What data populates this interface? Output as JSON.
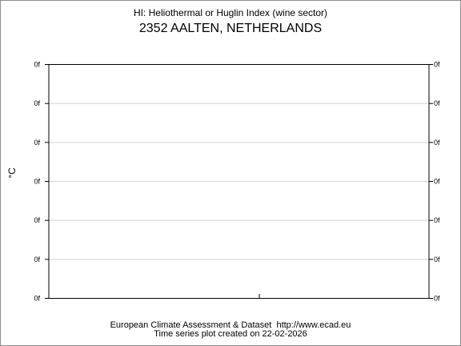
{
  "chart_data": {
    "type": "line",
    "title": "HI: Heliothermal or Huglin Index (wine sector)",
    "subtitle": "2352 AALTEN, NETHERLANDS",
    "ylabel": "°C",
    "xlabel": "",
    "y_tick_labels": [
      "0f",
      "0f",
      "0f",
      "0f",
      "0f",
      "0f",
      "0f"
    ],
    "grid": true,
    "series": []
  },
  "footer": {
    "line1": "European Climate Assessment & Dataset  http://www.ecad.eu",
    "line2": "Time series plot created on 22-02-2026"
  }
}
